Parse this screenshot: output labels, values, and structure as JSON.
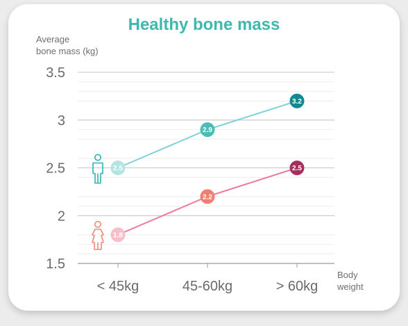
{
  "chart_data": {
    "type": "line",
    "title": "Healthy bone mass",
    "ylabel": "Average bone mass (kg)",
    "ylabel_lines": [
      "Average",
      "bone mass (kg)"
    ],
    "xlabel": "Body weight",
    "xlabel_lines": [
      "Body",
      "weight"
    ],
    "categories": [
      "< 45kg",
      "45-60kg",
      "> 60kg"
    ],
    "ylim": [
      1.5,
      3.5
    ],
    "yticks": [
      1.5,
      2,
      2.5,
      3,
      3.5
    ],
    "ytick_labels": [
      "1.5",
      "2",
      "2.5",
      "3",
      "3.5"
    ],
    "series": [
      {
        "icon": "male-icon",
        "values": [
          2.5,
          2.9,
          3.2
        ],
        "labels": [
          "2.5",
          "2.9",
          "3.2"
        ],
        "line_color": "#7fd3d6",
        "point_colors": [
          "#b5e3e2",
          "#4dbcb4",
          "#0e8a91"
        ],
        "icon_color": "#2cb4ad"
      },
      {
        "icon": "female-icon",
        "values": [
          1.8,
          2.2,
          2.5
        ],
        "labels": [
          "1.8",
          "2.2",
          "2.5"
        ],
        "line_color": "#f0799a",
        "point_colors": [
          "#f6bfca",
          "#ef8070",
          "#a6305d"
        ],
        "icon_color": "#ef8877"
      }
    ],
    "grid": true
  }
}
